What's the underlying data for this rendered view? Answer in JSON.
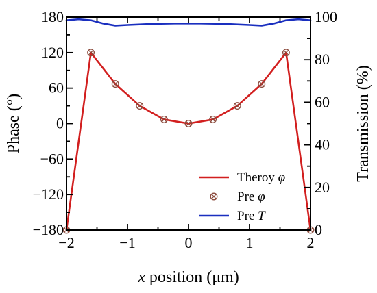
{
  "chart_data": {
    "type": "line",
    "xlabel": "x position (μm)",
    "xlabel_italic_part": "x",
    "xlabel_rest": " position (μm)",
    "ylabel_left": "Phase (°)",
    "ylabel_right": "Transmission (%)",
    "xlim": [
      -2,
      2
    ],
    "ylim_left": [
      -180,
      180
    ],
    "ylim_right": [
      0,
      100
    ],
    "x_ticks": [
      -2,
      -1,
      0,
      1,
      2
    ],
    "x_tick_labels": [
      "−2",
      "−1",
      "0",
      "1",
      "2"
    ],
    "y_left_ticks": [
      180,
      120,
      60,
      0,
      -60,
      -120,
      -180
    ],
    "y_left_tick_labels": [
      "180",
      "120",
      "60",
      "0",
      "−60",
      "−120",
      "−180"
    ],
    "y_right_ticks": [
      100,
      80,
      60,
      40,
      20,
      0
    ],
    "y_right_tick_labels": [
      "100",
      "80",
      "60",
      "40",
      "20",
      "0"
    ],
    "grid": false,
    "legend_position": "bottom-right",
    "series": [
      {
        "name": "Theroy φ",
        "legend_label_main": "Theroy ",
        "legend_label_symbol": "φ",
        "axis": "left",
        "style": "line",
        "color": "#d21f1f",
        "x": [
          -2.0,
          -1.6,
          -1.2,
          -0.8,
          -0.4,
          0.0,
          0.4,
          0.8,
          1.2,
          1.6,
          2.0
        ],
        "y": [
          -180,
          120,
          67,
          30,
          7,
          0,
          7,
          30,
          67,
          120,
          -180
        ]
      },
      {
        "name": "Pre φ",
        "legend_label_main": "Pre ",
        "legend_label_symbol": "φ",
        "axis": "left",
        "style": "marker",
        "color": "#8b4a3c",
        "x": [
          -2.0,
          -1.6,
          -1.2,
          -0.8,
          -0.4,
          0.0,
          0.4,
          0.8,
          1.2,
          1.6,
          2.0
        ],
        "y": [
          -180,
          120,
          67,
          30,
          7,
          0,
          7,
          30,
          67,
          120,
          -180
        ]
      },
      {
        "name": "Pre T",
        "legend_label_main": "Pre ",
        "legend_label_symbol": "T",
        "axis": "right",
        "style": "line",
        "color": "#1a2fbf",
        "x": [
          -2.0,
          -1.8,
          -1.6,
          -1.4,
          -1.2,
          -1.0,
          -0.6,
          -0.2,
          0.0,
          0.2,
          0.6,
          1.0,
          1.2,
          1.4,
          1.6,
          1.8,
          2.0
        ],
        "y": [
          98.5,
          99.0,
          98.5,
          97.0,
          96.0,
          96.3,
          96.8,
          97.0,
          97.0,
          97.0,
          96.8,
          96.3,
          96.0,
          97.0,
          98.5,
          99.0,
          98.5
        ]
      }
    ]
  }
}
